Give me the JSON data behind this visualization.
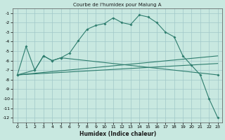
{
  "title": "Courbe de l'humidex pour Malung A",
  "xlabel": "Humidex (Indice chaleur)",
  "line_color": "#2e7d6e",
  "bg_color": "#c8e8e0",
  "grid_color": "#a0c8c8",
  "xlim": [
    -0.5,
    23.5
  ],
  "ylim": [
    -12.5,
    -0.5
  ],
  "yticks": [
    -1,
    -2,
    -3,
    -4,
    -5,
    -6,
    -7,
    -8,
    -9,
    -10,
    -11,
    -12
  ],
  "xticks": [
    0,
    1,
    2,
    3,
    4,
    5,
    6,
    7,
    8,
    9,
    10,
    11,
    12,
    13,
    14,
    15,
    16,
    17,
    18,
    19,
    20,
    21,
    22,
    23
  ],
  "series1_x": [
    0,
    1,
    2,
    3,
    4,
    5,
    6,
    7,
    8,
    9,
    10,
    11,
    12,
    13,
    14,
    15,
    16,
    17,
    18,
    19,
    20,
    21,
    22,
    23
  ],
  "series1_y": [
    -7.5,
    -4.5,
    -7.0,
    -5.5,
    -6.0,
    -5.7,
    -5.2,
    -3.9,
    -2.7,
    -2.3,
    -2.1,
    -1.5,
    -2.0,
    -2.2,
    -1.2,
    -1.4,
    -2.0,
    -3.0,
    -3.5,
    -5.5,
    -6.5,
    -7.5,
    -10.0,
    -12.0
  ],
  "series2_x": [
    0,
    2,
    3,
    4,
    5,
    23
  ],
  "series2_y": [
    -7.5,
    -7.0,
    -5.5,
    -6.0,
    -5.7,
    -7.5
  ],
  "series3_x": [
    0,
    23
  ],
  "series3_y": [
    -7.5,
    -5.5
  ],
  "series4_x": [
    0,
    23
  ],
  "series4_y": [
    -7.5,
    -6.3
  ]
}
